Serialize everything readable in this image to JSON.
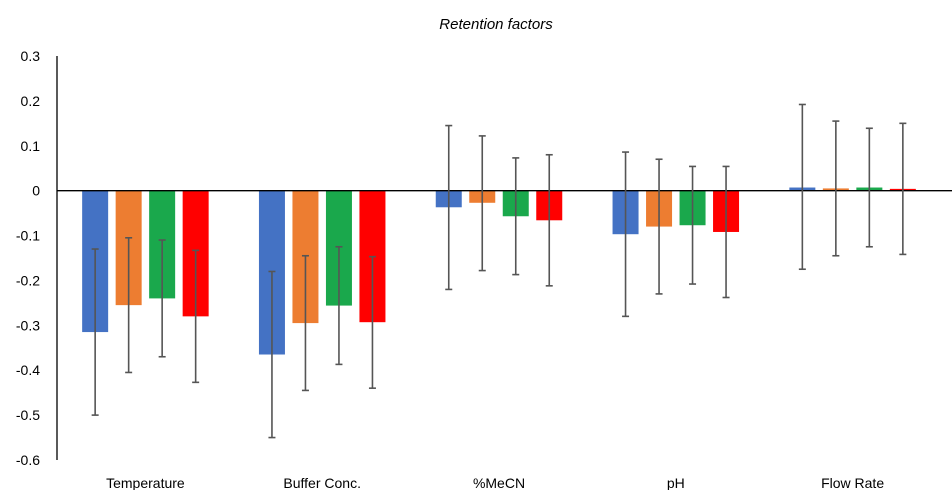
{
  "chart_data": {
    "type": "bar",
    "title": "Retention factors",
    "xlabel": "",
    "ylabel": "",
    "ylim": [
      -0.6,
      0.3
    ],
    "yticks": [
      "0.3",
      "0.2",
      "0.1",
      "0",
      "-0.1",
      "-0.2",
      "-0.3",
      "-0.4",
      "-0.5",
      "-0.6"
    ],
    "categories": [
      "Temperature",
      "Buffer Conc.",
      "%MeCN",
      "pH",
      "Flow Rate"
    ],
    "grid": false,
    "legend": "none",
    "series": [
      {
        "color": "#4472C4",
        "values": [
          -0.315,
          -0.365,
          -0.037,
          -0.097,
          0.007
        ],
        "error_low": [
          -0.5,
          -0.55,
          -0.22,
          -0.28,
          -0.175
        ],
        "error_high": [
          -0.13,
          -0.18,
          0.145,
          0.086,
          0.192
        ]
      },
      {
        "color": "#ED7D31",
        "values": [
          -0.255,
          -0.295,
          -0.027,
          -0.08,
          0.005
        ],
        "error_low": [
          -0.405,
          -0.445,
          -0.178,
          -0.23,
          -0.145
        ],
        "error_high": [
          -0.105,
          -0.145,
          0.122,
          0.07,
          0.155
        ]
      },
      {
        "color": "#1AA84C",
        "values": [
          -0.24,
          -0.256,
          -0.057,
          -0.077,
          0.007
        ],
        "error_low": [
          -0.37,
          -0.387,
          -0.187,
          -0.208,
          -0.125
        ],
        "error_high": [
          -0.11,
          -0.125,
          0.073,
          0.054,
          0.139
        ]
      },
      {
        "color": "#FF0000",
        "values": [
          -0.28,
          -0.293,
          -0.066,
          -0.092,
          0.004
        ],
        "error_low": [
          -0.427,
          -0.44,
          -0.212,
          -0.238,
          -0.142
        ],
        "error_high": [
          -0.133,
          -0.147,
          0.08,
          0.054,
          0.15
        ]
      }
    ],
    "error_bar_color": "#555555"
  }
}
